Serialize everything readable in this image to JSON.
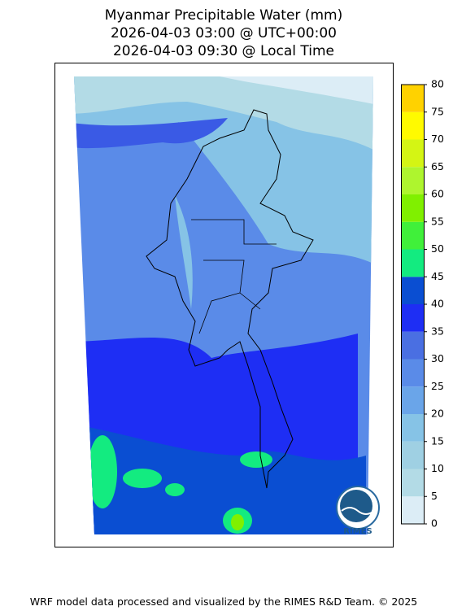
{
  "header": {
    "lines": [
      "Myanmar Precipitable Water (mm)",
      "2026-04-03 03:00 @ UTC+00:00",
      "2026-04-03 09:30 @ Local Time"
    ]
  },
  "colorbar": {
    "ticks": [
      0,
      5,
      10,
      15,
      20,
      25,
      30,
      35,
      40,
      45,
      50,
      55,
      60,
      65,
      70,
      75,
      80
    ],
    "colors": [
      "#dcedf6",
      "#b3dbe6",
      "#9fd0e3",
      "#86c3e6",
      "#6aa5e9",
      "#5a8be8",
      "#4a6fe2",
      "#1e2ef4",
      "#0a4ed2",
      "#13eb80",
      "#40f03a",
      "#80f000",
      "#aef52e",
      "#d4f514",
      "#fffa00",
      "#ffd200"
    ]
  },
  "logo": {
    "label": "RIMES"
  },
  "footer": "WRF model data processed and visualized by the RIMES R&D Team. © 2025"
}
